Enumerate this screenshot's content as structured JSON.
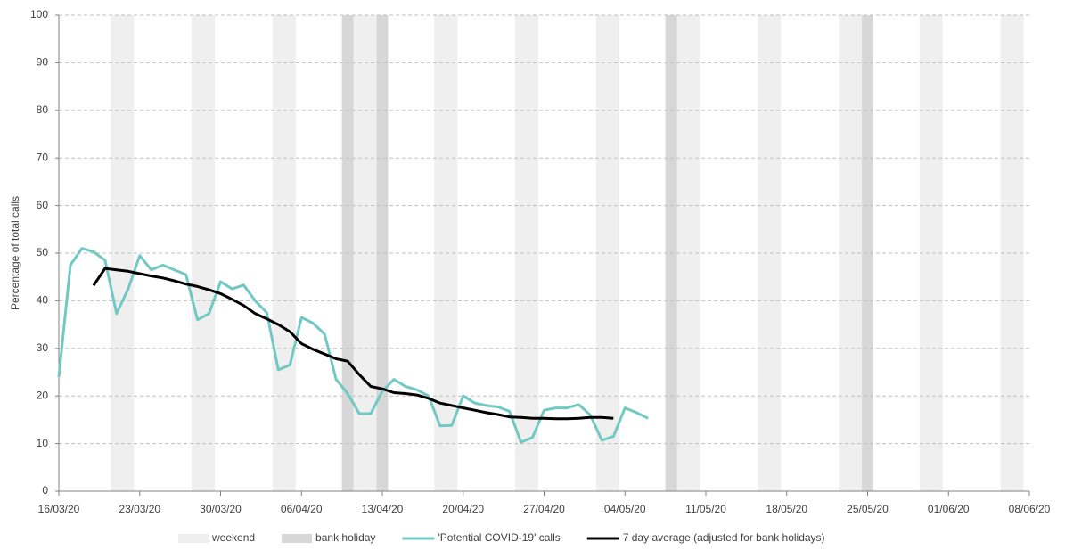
{
  "chart_data": {
    "type": "line",
    "y_label": "Percentage of total calls",
    "x": [
      "2020-03-16",
      "2020-03-17",
      "2020-03-18",
      "2020-03-19",
      "2020-03-20",
      "2020-03-21",
      "2020-03-22",
      "2020-03-23",
      "2020-03-24",
      "2020-03-25",
      "2020-03-26",
      "2020-03-27",
      "2020-03-28",
      "2020-03-29",
      "2020-03-30",
      "2020-03-31",
      "2020-04-01",
      "2020-04-02",
      "2020-04-03",
      "2020-04-04",
      "2020-04-05",
      "2020-04-06",
      "2020-04-07",
      "2020-04-08",
      "2020-04-09",
      "2020-04-10",
      "2020-04-11",
      "2020-04-12",
      "2020-04-13",
      "2020-04-14",
      "2020-04-15",
      "2020-04-16",
      "2020-04-17",
      "2020-04-18",
      "2020-04-19",
      "2020-04-20",
      "2020-04-21",
      "2020-04-22",
      "2020-04-23",
      "2020-04-24",
      "2020-04-25",
      "2020-04-26",
      "2020-04-27",
      "2020-04-28",
      "2020-04-29",
      "2020-04-30",
      "2020-05-01",
      "2020-05-02",
      "2020-05-03",
      "2020-05-04",
      "2020-05-05",
      "2020-05-06"
    ],
    "series": [
      {
        "name": "'Potential COVID-19' calls",
        "color": "#72c9c3",
        "values": [
          24,
          47.5,
          51,
          50.3,
          48.5,
          37.3,
          42.5,
          49.5,
          46.5,
          47.5,
          46.5,
          45.5,
          36,
          37.3,
          44,
          42.5,
          43.3,
          40,
          37.5,
          25.5,
          26.5,
          36.5,
          35.3,
          33,
          23.5,
          20.5,
          16.3,
          16.3,
          21,
          23.5,
          22,
          21.3,
          20,
          13.7,
          13.8,
          20,
          18.5,
          18,
          17.7,
          16.8,
          10.3,
          11.3,
          17,
          17.5,
          17.5,
          18.2,
          16,
          10.7,
          11.5,
          17.5,
          16.5,
          15.3
        ]
      },
      {
        "name": "7 day average (adjusted for bank holidays)",
        "color": "#000000",
        "values": [
          null,
          null,
          null,
          43.2,
          46.8,
          46.5,
          46.2,
          45.7,
          45.2,
          44.8,
          44.2,
          43.5,
          43,
          42.3,
          41.5,
          40.3,
          39,
          37.3,
          36.2,
          35,
          33.5,
          31,
          29.8,
          28.8,
          27.8,
          27.3,
          24.5,
          22,
          21.5,
          20.7,
          20.5,
          20.2,
          19.5,
          18.5,
          18,
          17.5,
          17,
          16.5,
          16.1,
          15.6,
          15.5,
          15.3,
          15.3,
          15.2,
          15.2,
          15.3,
          15.5,
          15.5,
          15.3,
          null,
          null,
          null
        ]
      }
    ],
    "shaded_regions": [
      {
        "name": "weekend",
        "color": "#efefef",
        "dates": [
          "2020-03-21",
          "2020-03-22",
          "2020-03-28",
          "2020-03-29",
          "2020-04-04",
          "2020-04-05",
          "2020-04-11",
          "2020-04-12",
          "2020-04-18",
          "2020-04-19",
          "2020-04-25",
          "2020-04-26",
          "2020-05-02",
          "2020-05-03",
          "2020-05-09",
          "2020-05-10",
          "2020-05-16",
          "2020-05-17",
          "2020-05-23",
          "2020-05-24",
          "2020-05-30",
          "2020-05-31",
          "2020-06-06",
          "2020-06-07"
        ]
      },
      {
        "name": "bank holiday",
        "color": "#d7d7d7",
        "dates": [
          "2020-04-10",
          "2020-04-13",
          "2020-05-08",
          "2020-05-25"
        ]
      }
    ],
    "xlim": [
      "2020-03-16",
      "2020-06-08"
    ],
    "xticks": [
      {
        "value": "2020-03-16",
        "label": "16/03/20"
      },
      {
        "value": "2020-03-23",
        "label": "23/03/20"
      },
      {
        "value": "2020-03-30",
        "label": "30/03/20"
      },
      {
        "value": "2020-04-06",
        "label": "06/04/20"
      },
      {
        "value": "2020-04-13",
        "label": "13/04/20"
      },
      {
        "value": "2020-04-20",
        "label": "20/04/20"
      },
      {
        "value": "2020-04-27",
        "label": "27/04/20"
      },
      {
        "value": "2020-05-04",
        "label": "04/05/20"
      },
      {
        "value": "2020-05-11",
        "label": "11/05/20"
      },
      {
        "value": "2020-05-18",
        "label": "18/05/20"
      },
      {
        "value": "2020-05-25",
        "label": "25/05/20"
      },
      {
        "value": "2020-06-01",
        "label": "01/06/20"
      },
      {
        "value": "2020-06-08",
        "label": "08/06/20"
      }
    ],
    "ylim": [
      0,
      100
    ],
    "yticks": [
      0,
      10,
      20,
      30,
      40,
      50,
      60,
      70,
      80,
      90,
      100
    ],
    "grid": true
  }
}
